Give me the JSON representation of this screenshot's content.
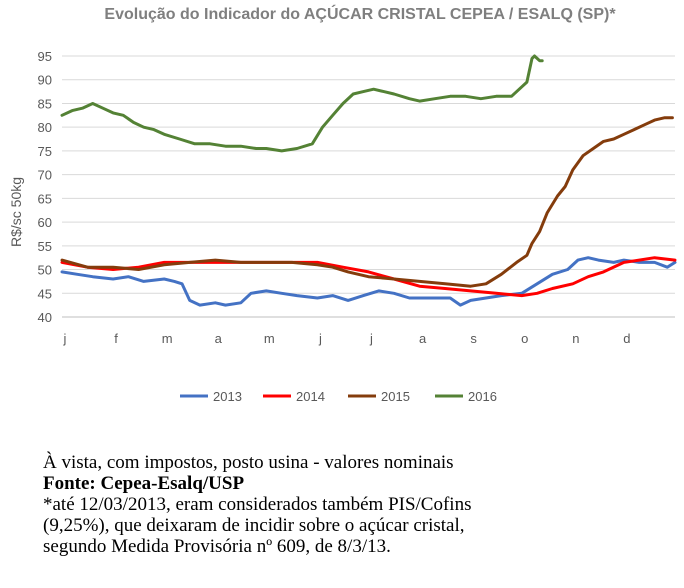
{
  "chart_data": {
    "type": "line",
    "title": "Evolução do Indicador do AÇÚCAR CRISTAL CEPEA / ESALQ  (SP)*",
    "ylabel": "R$/sc 50kg",
    "xlabel": "",
    "ylim": [
      40,
      95
    ],
    "yticks": [
      40,
      45,
      50,
      55,
      60,
      65,
      70,
      75,
      80,
      85,
      90,
      95
    ],
    "x_domain": [
      0,
      12
    ],
    "xticks": [
      "j",
      "f",
      "m",
      "a",
      "m",
      "j",
      "j",
      "a",
      "s",
      "o",
      "n",
      "d"
    ],
    "grid": "horizontal",
    "legend_position": "bottom",
    "series": [
      {
        "name": "2013",
        "color": "#4472c4",
        "x": [
          0,
          0.3,
          0.6,
          1,
          1.3,
          1.6,
          2,
          2.2,
          2.35,
          2.5,
          2.7,
          3,
          3.2,
          3.5,
          3.7,
          4,
          4.3,
          4.6,
          5,
          5.3,
          5.6,
          5.9,
          6.2,
          6.5,
          6.8,
          7,
          7.3,
          7.6,
          7.8,
          8,
          8.3,
          8.6,
          9,
          9.3,
          9.6,
          9.9,
          10.1,
          10.3,
          10.5,
          10.8,
          11,
          11.3,
          11.6,
          11.85,
          12
        ],
        "values": [
          49.5,
          49,
          48.5,
          48,
          48.5,
          47.5,
          48,
          47.5,
          47,
          43.5,
          42.5,
          43,
          42.5,
          43,
          45,
          45.5,
          45,
          44.5,
          44,
          44.5,
          43.5,
          44.5,
          45.5,
          45,
          44,
          44,
          44,
          44,
          42.5,
          43.5,
          44,
          44.5,
          45,
          47,
          49,
          50,
          52,
          52.5,
          52,
          51.5,
          52,
          51.5,
          51.5,
          50.5,
          51.5
        ]
      },
      {
        "name": "2014",
        "color": "#ff0000",
        "x": [
          0,
          0.5,
          1,
          1.5,
          2,
          2.5,
          3,
          3.5,
          4,
          4.5,
          5,
          5.5,
          6,
          6.5,
          7,
          7.5,
          8,
          8.5,
          9,
          9.3,
          9.6,
          10,
          10.3,
          10.6,
          11,
          11.3,
          11.6,
          12
        ],
        "values": [
          51.5,
          50.5,
          50,
          50.5,
          51.5,
          51.5,
          51.5,
          51.5,
          51.5,
          51.5,
          51.5,
          50.5,
          49.5,
          48,
          46.5,
          46,
          45.5,
          45,
          44.5,
          45,
          46,
          47,
          48.5,
          49.5,
          51.5,
          52,
          52.5,
          52
        ]
      },
      {
        "name": "2015",
        "color": "#843c0c",
        "x": [
          0,
          0.5,
          1,
          1.5,
          2,
          2.5,
          3,
          3.5,
          4,
          4.5,
          5,
          5.3,
          5.6,
          6,
          6.5,
          7,
          7.5,
          8,
          8.3,
          8.6,
          8.9,
          9.1,
          9.2,
          9.35,
          9.5,
          9.7,
          9.85,
          10,
          10.2,
          10.4,
          10.6,
          10.8,
          11,
          11.2,
          11.4,
          11.6,
          11.8,
          11.95
        ],
        "values": [
          52,
          50.5,
          50.5,
          50,
          51,
          51.5,
          52,
          51.5,
          51.5,
          51.5,
          51,
          50.5,
          49.5,
          48.5,
          48,
          47.5,
          47,
          46.5,
          47,
          49,
          51.5,
          53,
          55.5,
          58,
          62,
          65.5,
          67.5,
          71,
          74,
          75.5,
          77,
          77.5,
          78.5,
          79.5,
          80.5,
          81.5,
          82,
          82
        ]
      },
      {
        "name": "2016",
        "color": "#548235",
        "x": [
          0,
          0.2,
          0.4,
          0.6,
          0.8,
          1,
          1.2,
          1.4,
          1.6,
          1.8,
          2,
          2.3,
          2.6,
          2.9,
          3.2,
          3.5,
          3.8,
          4,
          4.3,
          4.6,
          4.9,
          5.1,
          5.3,
          5.5,
          5.7,
          5.9,
          6.1,
          6.3,
          6.5,
          6.8,
          7,
          7.3,
          7.6,
          7.9,
          8.2,
          8.5,
          8.8,
          9,
          9.1,
          9.2,
          9.25,
          9.3,
          9.35,
          9.4
        ],
        "values": [
          82.5,
          83.5,
          84,
          85,
          84,
          83,
          82.5,
          81,
          80,
          79.5,
          78.5,
          77.5,
          76.5,
          76.5,
          76,
          76,
          75.5,
          75.5,
          75,
          75.5,
          76.5,
          80,
          82.5,
          85,
          87,
          87.5,
          88,
          87.5,
          87,
          86,
          85.5,
          86,
          86.5,
          86.5,
          86,
          86.5,
          86.5,
          88.5,
          89.5,
          94.5,
          95,
          94.5,
          94,
          94
        ]
      }
    ]
  },
  "notes": {
    "line1": "À vista, com impostos, posto usina - valores nominais",
    "source": "Fonte: Cepea-Esalq/USP",
    "line3": "*até 12/03/2013, eram considerados também PIS/Cofins",
    "line4": "(9,25%), que deixaram de incidir sobre o açúcar cristal,",
    "line5": "segundo Medida Provisória nº 609, de 8/3/13."
  }
}
